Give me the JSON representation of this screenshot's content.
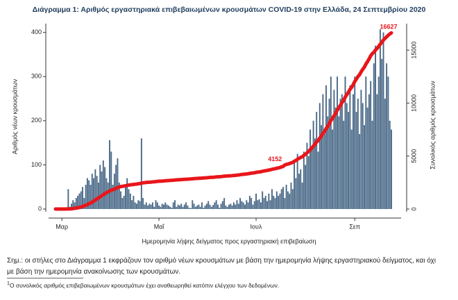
{
  "chart_data": {
    "type": "bar_line",
    "title": "Διάγραμμα 1: Αριθμός εργαστηριακά επιβεβαιωμένων κρουσμάτων COVID-19 στην Ελλάδα, 24 Σεπτεμβρίου 2020",
    "xlabel": "Ημερομηνία λήψης δείγματος προς εργαστηριακή επιβεβαίωση",
    "ylabel": "Αριθμός νέων κρουσμάτων",
    "y2label": "Συνολικός αριθμός κρουσμάτων",
    "categories": [
      null,
      null,
      null,
      null,
      "Μαρ",
      null,
      null,
      null,
      null,
      null,
      null,
      null,
      null,
      null,
      null,
      null,
      null,
      null,
      null,
      null,
      null,
      null,
      null,
      null,
      null,
      null,
      null,
      null,
      null,
      null,
      null,
      null,
      null,
      null,
      null,
      null,
      null,
      null,
      null,
      null,
      null,
      null,
      null,
      null,
      null,
      null,
      null,
      null,
      null,
      null,
      null,
      null,
      null,
      null,
      null,
      null,
      null,
      null,
      null,
      null,
      null,
      null,
      null,
      null,
      null,
      "Μαΐ",
      null,
      null,
      null,
      null,
      null,
      null,
      null,
      null,
      null,
      null,
      null,
      null,
      null,
      null,
      null,
      null,
      null,
      null,
      null,
      null,
      null,
      null,
      null,
      null,
      null,
      null,
      null,
      null,
      null,
      null,
      null,
      null,
      null,
      null,
      null,
      null,
      null,
      null,
      null,
      null,
      null,
      null,
      null,
      null,
      null,
      null,
      null,
      null,
      null,
      null,
      null,
      null,
      null,
      null,
      null,
      null,
      null,
      null,
      null,
      null,
      "Ιουλ",
      null,
      null,
      null,
      null,
      null,
      null,
      null,
      null,
      null,
      null,
      null,
      null,
      null,
      null,
      null,
      null,
      null,
      null,
      null,
      null,
      null,
      null,
      null,
      null,
      null,
      null,
      null,
      null,
      null,
      null,
      null,
      null,
      null,
      null,
      null,
      null,
      null,
      null,
      null,
      null,
      null,
      null,
      null,
      null,
      null,
      null,
      null,
      null,
      null,
      null,
      null,
      null,
      null,
      null,
      null,
      null,
      null,
      null,
      null,
      null,
      null,
      "Σεπ",
      null,
      null,
      null,
      null,
      null,
      null,
      null,
      null,
      null,
      null,
      null,
      null,
      null,
      null,
      null,
      null,
      null,
      null,
      null,
      null,
      null,
      null,
      null
    ],
    "series": [
      {
        "type": "bar",
        "color": "#4b6a88",
        "values": [
          0,
          0,
          1,
          0,
          2,
          1,
          0,
          3,
          45,
          5,
          12,
          20,
          15,
          25,
          30,
          35,
          40,
          50,
          25,
          55,
          70,
          65,
          55,
          80,
          70,
          90,
          75,
          60,
          100,
          85,
          110,
          95,
          70,
          60,
          156,
          130,
          55,
          80,
          100,
          115,
          60,
          40,
          25,
          30,
          55,
          70,
          45,
          35,
          20,
          30,
          15,
          12,
          20,
          18,
          160,
          25,
          10,
          15,
          8,
          12,
          10,
          15,
          5,
          20,
          15,
          8,
          5,
          12,
          10,
          15,
          10,
          8,
          5,
          3,
          15,
          20,
          5,
          10,
          8,
          12,
          5,
          10,
          15,
          8,
          3,
          2,
          20,
          12,
          5,
          8,
          10,
          5,
          15,
          3,
          8,
          12,
          18,
          10,
          5,
          9,
          15,
          20,
          10,
          3,
          12,
          18,
          25,
          8,
          5,
          10,
          12,
          8,
          15,
          10,
          20,
          12,
          25,
          18,
          15,
          10,
          20,
          15,
          30,
          25,
          10,
          18,
          35,
          20,
          22,
          15,
          40,
          25,
          30,
          18,
          35,
          20,
          45,
          30,
          25,
          40,
          30,
          35,
          45,
          50,
          25,
          55,
          40,
          35,
          60,
          45,
          110,
          70,
          125,
          80,
          90,
          60,
          130,
          100,
          150,
          120,
          180,
          140,
          200,
          160,
          220,
          130,
          240,
          190,
          260,
          170,
          280,
          210,
          250,
          300,
          180,
          270,
          230,
          300,
          210,
          250,
          260,
          200,
          300,
          240,
          220,
          280,
          180,
          260,
          300,
          220,
          250,
          170,
          270,
          240,
          190,
          300,
          230,
          260,
          290,
          200,
          330,
          370,
          260,
          300,
          407,
          340,
          400,
          250,
          330,
          300,
          200,
          180
        ]
      },
      {
        "type": "line",
        "axis": "y2",
        "color": "#e8161b",
        "labeled_points": [
          144,
          211
        ],
        "values": [
          0,
          0,
          1,
          1,
          3,
          4,
          4,
          7,
          9,
          10,
          20,
          40,
          70,
          90,
          110,
          150,
          190,
          230,
          300,
          350,
          420,
          500,
          560,
          650,
          750,
          850,
          950,
          1050,
          1150,
          1250,
          1350,
          1450,
          1550,
          1620,
          1700,
          1780,
          1830,
          1880,
          1950,
          2030,
          2080,
          2120,
          2140,
          2170,
          2200,
          2230,
          2260,
          2280,
          2300,
          2320,
          2340,
          2360,
          2380,
          2400,
          2450,
          2470,
          2490,
          2510,
          2520,
          2530,
          2540,
          2560,
          2570,
          2590,
          2610,
          2620,
          2630,
          2640,
          2650,
          2670,
          2680,
          2690,
          2700,
          2710,
          2720,
          2740,
          2750,
          2760,
          2770,
          2780,
          2790,
          2800,
          2810,
          2820,
          2830,
          2840,
          2850,
          2870,
          2880,
          2890,
          2900,
          2910,
          2920,
          2930,
          2940,
          2950,
          2970,
          2980,
          2990,
          3000,
          3010,
          3030,
          3040,
          3050,
          3060,
          3080,
          3100,
          3110,
          3120,
          3130,
          3140,
          3150,
          3170,
          3180,
          3200,
          3210,
          3240,
          3260,
          3280,
          3290,
          3310,
          3330,
          3360,
          3390,
          3400,
          3420,
          3460,
          3480,
          3500,
          3520,
          3560,
          3590,
          3620,
          3640,
          3680,
          3700,
          3750,
          3780,
          3810,
          3850,
          3880,
          3920,
          3970,
          4020,
          4152,
          4210,
          4250,
          4290,
          4350,
          4400,
          4510,
          4580,
          4700,
          4780,
          4870,
          4930,
          5060,
          5160,
          5310,
          5430,
          5610,
          5750,
          5950,
          6110,
          6330,
          6460,
          6700,
          6890,
          7150,
          7320,
          7600,
          7810,
          8060,
          8360,
          8540,
          8810,
          9040,
          9340,
          9550,
          9800,
          10060,
          10260,
          10560,
          10800,
          11020,
          11300,
          11480,
          11740,
          12040,
          12260,
          12510,
          12680,
          12950,
          13190,
          13380,
          13680,
          13910,
          14170,
          14460,
          14660,
          14800,
          15000,
          15150,
          15350,
          15550,
          15750,
          15950,
          16100,
          16250,
          16400,
          16520,
          16627
        ]
      }
    ],
    "ylim": [
      0,
      420
    ],
    "yticks": [
      0,
      100,
      200,
      300,
      400
    ],
    "y2lim": [
      0,
      17500
    ],
    "y2ticks": [
      0,
      5000,
      10000,
      15000
    ]
  },
  "notes": {
    "note": "Σημ.: οι στήλες στο Διάγραμμα 1 εκφράζουν τον αριθμό νέων κρουσμάτων με βάση την ημερομηνία λήψης εργαστηριακού δείγματος, και όχι με βάση την ημερομηνία ανακοίνωσης των κρουσμάτων.",
    "footnote_mark": "1",
    "footnote": "Ο συνολικός αριθμός επιβεβαιωμένων κρουσμάτων έχει αναθεωρηθεί κατόπιν ελέγχου των δεδομένων."
  }
}
